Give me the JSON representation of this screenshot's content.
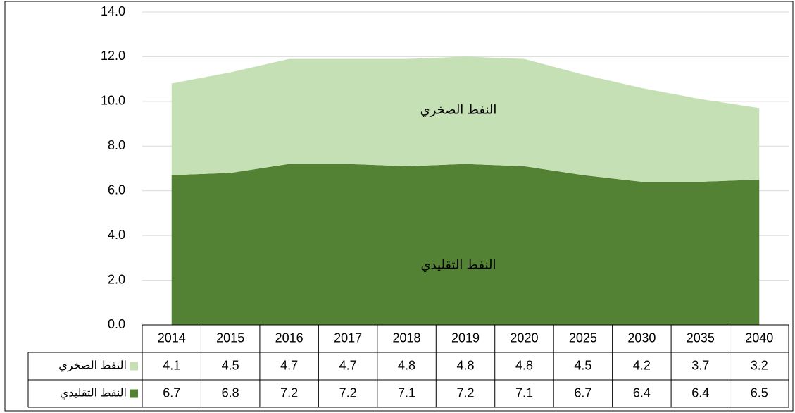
{
  "chart_data": {
    "type": "area",
    "categories": [
      "2014",
      "2015",
      "2016",
      "2017",
      "2018",
      "2019",
      "2020",
      "2025",
      "2030",
      "2035",
      "2040"
    ],
    "series": [
      {
        "name": "النفط التقليدي",
        "color": "#548235",
        "values": [
          6.7,
          6.8,
          7.2,
          7.2,
          7.1,
          7.2,
          7.1,
          6.7,
          6.4,
          6.4,
          6.5
        ]
      },
      {
        "name": "النفط الصخري",
        "color": "#c5e0b4",
        "values": [
          4.1,
          4.5,
          4.7,
          4.7,
          4.8,
          4.8,
          4.8,
          4.5,
          4.2,
          3.7,
          3.2
        ]
      }
    ],
    "stacked": true,
    "ylim": [
      0,
      14
    ],
    "yticks": [
      {
        "value": 0,
        "label": "0.0"
      },
      {
        "value": 2,
        "label": "2.0"
      },
      {
        "value": 4,
        "label": "4.0"
      },
      {
        "value": 6,
        "label": "6.0"
      },
      {
        "value": 8,
        "label": "8.0"
      },
      {
        "value": 10,
        "label": "10.0"
      },
      {
        "value": 12,
        "label": "12.0"
      },
      {
        "value": 14,
        "label": "14.0"
      }
    ],
    "grid": true,
    "data_table": true
  }
}
